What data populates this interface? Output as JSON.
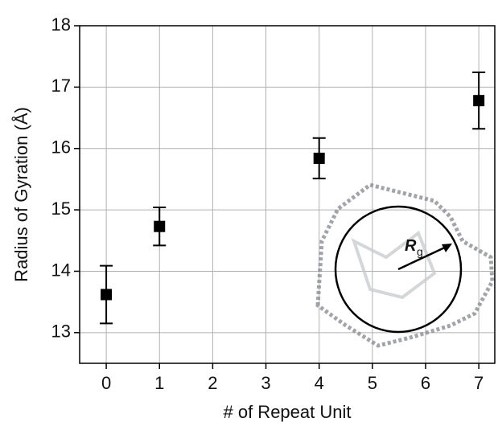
{
  "chart_data": {
    "type": "scatter",
    "x_label": "# of Repeat Unit",
    "y_label": "Radius of Gyration (Å)",
    "x": [
      0,
      1,
      4,
      7
    ],
    "values": [
      13.62,
      14.73,
      15.84,
      16.78
    ],
    "errors": [
      0.47,
      0.31,
      0.33,
      0.46
    ],
    "color": "#000000",
    "xlim": [
      -0.5,
      7.3
    ],
    "xticks": [
      0,
      1,
      2,
      3,
      4,
      5,
      6,
      7
    ],
    "ylim": [
      12.5,
      18
    ],
    "yticks": [
      13,
      14,
      15,
      16,
      17,
      18
    ],
    "grid": true,
    "annotation": "R",
    "annotation_sub": "g"
  }
}
